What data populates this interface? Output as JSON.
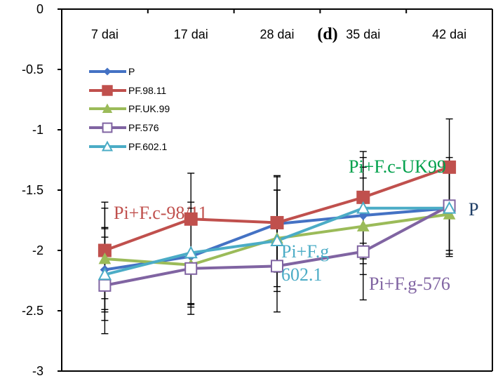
{
  "chart_data": {
    "type": "line",
    "title": "(d)",
    "categories": [
      "7 dai",
      "17 dai",
      "28 dai",
      "35 dai",
      "42 dai"
    ],
    "ylim": [
      -3,
      0
    ],
    "yticks": [
      0,
      -0.5,
      -1,
      -1.5,
      -2,
      -2.5,
      -3
    ],
    "ytick_labels": [
      "0",
      "-0.5",
      "-1",
      "-1.5",
      "-2",
      "-2.5",
      "-3"
    ],
    "xaxis_position": "top",
    "legend_position": "top-left",
    "grid": false,
    "series": [
      {
        "name": "P",
        "color": "#4472C4",
        "marker": "diamond",
        "values": [
          -2.16,
          -2.05,
          -1.78,
          -1.71,
          -1.65
        ],
        "errors": [
          0.35,
          0.4,
          0.4,
          0.4,
          0.35
        ]
      },
      {
        "name": "PF.98.11",
        "color": "#C0504D",
        "marker": "square",
        "values": [
          -2.0,
          -1.74,
          -1.77,
          -1.56,
          -1.31
        ],
        "errors": [
          0.4,
          0.38,
          0.38,
          0.38,
          0.4
        ]
      },
      {
        "name": "PF.UK.99",
        "color": "#9BBB59",
        "marker": "triangle",
        "values": [
          -2.07,
          -2.12,
          -1.9,
          -1.8,
          -1.7
        ],
        "errors": [
          0.42,
          0.35,
          0.4,
          0.4,
          0.35
        ]
      },
      {
        "name": "PF.576",
        "color": "#8064A2",
        "marker": "square-open",
        "values": [
          -2.29,
          -2.15,
          -2.13,
          -2.01,
          -1.63
        ],
        "errors": [
          0.4,
          0.38,
          0.38,
          0.4,
          0.4
        ]
      },
      {
        "name": "PF.602.1",
        "color": "#4BACC6",
        "marker": "triangle-open",
        "values": [
          -2.2,
          -2.02,
          -1.92,
          -1.65,
          -1.65
        ],
        "errors": [
          0.38,
          0.42,
          0.42,
          0.42,
          0.38
        ]
      }
    ],
    "annotations": [
      {
        "text": "Pi+F.c-98/11",
        "color": "#C0504D"
      },
      {
        "text": "Pi+F.c-UK99",
        "color": "#00A04B"
      },
      {
        "text": "P",
        "color": "#1F3E66"
      },
      {
        "text": "Pi+F.g",
        "color": "#4BACC6"
      },
      {
        "text": "602.1",
        "color": "#4BACC6"
      },
      {
        "text": "Pi+F.g-576",
        "color": "#8064A2"
      }
    ]
  }
}
